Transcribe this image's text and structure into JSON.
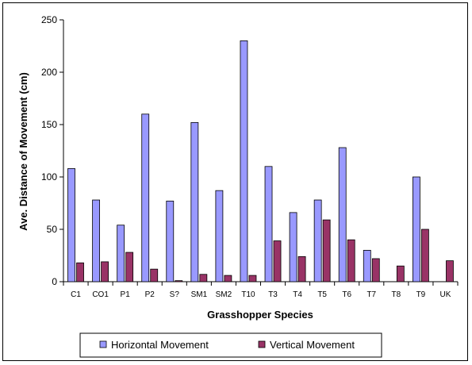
{
  "chart_data": {
    "type": "bar",
    "xlabel": "Grasshopper Species",
    "ylabel": "Ave. Distance of Movement (cm)",
    "ylim": [
      0,
      250
    ],
    "yticks": [
      0,
      50,
      100,
      150,
      200,
      250
    ],
    "grid": false,
    "legend_position": "bottom",
    "categories": [
      "C1",
      "CO1",
      "P1",
      "P2",
      "S?",
      "SM1",
      "SM2",
      "T10",
      "T3",
      "T4",
      "T5",
      "T6",
      "T7",
      "T8",
      "T9",
      "UK"
    ],
    "series": [
      {
        "name": "Horizontal Movement",
        "color": "#9999ff",
        "values": [
          108,
          78,
          54,
          160,
          77,
          152,
          87,
          230,
          110,
          66,
          78,
          128,
          30,
          0,
          100,
          0
        ]
      },
      {
        "name": "Vertical Movement",
        "color": "#993366",
        "values": [
          18,
          19,
          28,
          12,
          1,
          7,
          6,
          6,
          39,
          24,
          59,
          40,
          22,
          15,
          50,
          20
        ]
      }
    ]
  }
}
